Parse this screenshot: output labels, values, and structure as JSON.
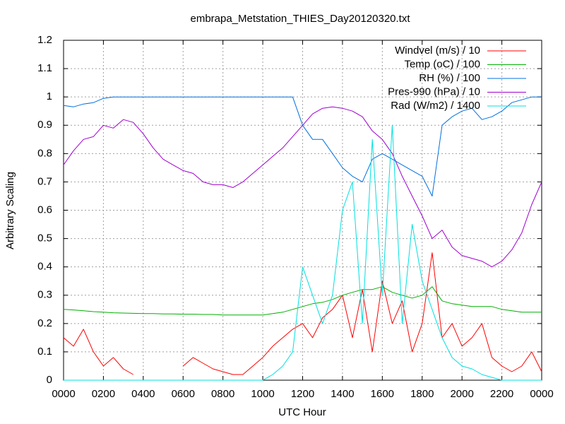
{
  "chart_data": {
    "type": "line",
    "title": "embrapa_Metstation_THIES_Day20120320.txt",
    "x_label": "UTC Hour",
    "y_label": "Arbitrary Scaling",
    "xlim": [
      0,
      24
    ],
    "ylim": [
      0,
      1.2
    ],
    "xticks": [
      {
        "value": 0,
        "label": "0000"
      },
      {
        "value": 2,
        "label": "0200"
      },
      {
        "value": 4,
        "label": "0400"
      },
      {
        "value": 6,
        "label": "0600"
      },
      {
        "value": 8,
        "label": "0800"
      },
      {
        "value": 10,
        "label": "1000"
      },
      {
        "value": 12,
        "label": "1200"
      },
      {
        "value": 14,
        "label": "1400"
      },
      {
        "value": 16,
        "label": "1600"
      },
      {
        "value": 18,
        "label": "1800"
      },
      {
        "value": 20,
        "label": "2000"
      },
      {
        "value": 22,
        "label": "2200"
      },
      {
        "value": 24,
        "label": "0000"
      }
    ],
    "yticks": [
      0,
      0.1,
      0.2,
      0.3,
      0.4,
      0.5,
      0.6,
      0.7,
      0.8,
      0.9,
      1,
      1.1,
      1.2
    ],
    "grid": true,
    "legend": "top-right",
    "x": [
      0,
      0.5,
      1,
      1.5,
      2,
      2.5,
      3,
      3.5,
      4,
      4.5,
      5,
      5.5,
      6,
      6.5,
      7,
      7.5,
      8,
      8.5,
      9,
      9.5,
      10,
      10.5,
      11,
      11.5,
      12,
      12.5,
      13,
      13.5,
      14,
      14.5,
      15,
      15.5,
      16,
      16.5,
      17,
      17.5,
      18,
      18.5,
      19,
      19.5,
      20,
      20.5,
      21,
      21.5,
      22,
      22.5,
      23,
      23.5,
      24
    ],
    "series": [
      {
        "name": "Windvel (m/s) / 10",
        "color": "#ff0000",
        "values": [
          0.15,
          0.12,
          0.18,
          0.1,
          0.05,
          0.08,
          0.04,
          0.02,
          null,
          null,
          null,
          null,
          0.05,
          0.08,
          0.06,
          0.04,
          0.03,
          0.02,
          0.02,
          0.05,
          0.08,
          0.12,
          0.15,
          0.18,
          0.2,
          0.15,
          0.22,
          0.25,
          0.3,
          0.15,
          0.32,
          0.1,
          0.35,
          0.2,
          0.28,
          0.1,
          0.2,
          0.45,
          0.15,
          0.2,
          0.12,
          0.15,
          0.2,
          0.08,
          0.05,
          0.03,
          0.05,
          0.1,
          0.03
        ]
      },
      {
        "name": "Temp (oC) / 100",
        "color": "#00b000",
        "values": [
          0.25,
          0.248,
          0.245,
          0.242,
          0.24,
          0.238,
          0.237,
          0.236,
          0.235,
          0.235,
          0.234,
          0.234,
          0.233,
          0.233,
          0.232,
          0.232,
          0.23,
          0.23,
          0.23,
          0.23,
          0.23,
          0.235,
          0.24,
          0.25,
          0.26,
          0.27,
          0.275,
          0.285,
          0.3,
          0.31,
          0.32,
          0.32,
          0.33,
          0.31,
          0.3,
          0.29,
          0.3,
          0.33,
          0.28,
          0.27,
          0.265,
          0.26,
          0.26,
          0.26,
          0.25,
          0.245,
          0.24,
          0.24,
          0.24
        ]
      },
      {
        "name": "RH (%) / 100",
        "color": "#0070e0",
        "values": [
          0.97,
          0.965,
          0.975,
          0.98,
          0.995,
          1,
          1,
          1,
          1,
          1,
          1,
          1,
          1,
          1,
          1,
          1,
          1,
          1,
          1,
          1,
          1,
          1,
          1,
          1,
          0.9,
          0.85,
          0.85,
          0.8,
          0.75,
          0.72,
          0.7,
          0.78,
          0.8,
          0.78,
          0.76,
          0.74,
          0.72,
          0.65,
          0.9,
          0.93,
          0.95,
          0.96,
          0.92,
          0.93,
          0.95,
          0.98,
          0.99,
          1,
          1
        ]
      },
      {
        "name": "Pres-990 (hPa) / 10",
        "color": "#a000d0",
        "values": [
          0.76,
          0.81,
          0.85,
          0.86,
          0.9,
          0.89,
          0.92,
          0.91,
          0.87,
          0.82,
          0.78,
          0.76,
          0.74,
          0.73,
          0.7,
          0.69,
          0.69,
          0.68,
          0.7,
          0.73,
          0.76,
          0.79,
          0.82,
          0.86,
          0.9,
          0.94,
          0.96,
          0.965,
          0.96,
          0.95,
          0.93,
          0.88,
          0.85,
          0.8,
          0.72,
          0.65,
          0.58,
          0.5,
          0.53,
          0.47,
          0.44,
          0.43,
          0.42,
          0.4,
          0.42,
          0.46,
          0.52,
          0.62,
          0.7
        ]
      },
      {
        "name": "Rad (W/m2) / 1400",
        "color": "#00e0e0",
        "values": [
          0,
          0,
          0,
          0,
          0,
          0,
          0,
          0,
          0,
          0,
          0,
          0,
          0,
          0,
          0,
          0,
          0,
          0,
          0,
          0,
          0,
          0.02,
          0.05,
          0.1,
          0.4,
          0.3,
          0.2,
          0.3,
          0.6,
          0.7,
          0.2,
          0.85,
          0.3,
          0.9,
          0.2,
          0.55,
          0.35,
          0.25,
          0.15,
          0.08,
          0.05,
          0.04,
          0.02,
          0.01,
          0,
          0,
          0,
          0,
          0
        ]
      }
    ]
  }
}
